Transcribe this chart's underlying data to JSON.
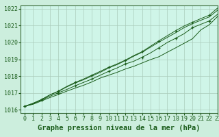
{
  "title": "Graphe pression niveau de la mer (hPa)",
  "bg_color": "#cceedd",
  "plot_bg_color": "#cff5e8",
  "grid_color": "#aaccbb",
  "line_color": "#1a5c1a",
  "border_color": "#336633",
  "xlim": [
    -0.5,
    23
  ],
  "ylim": [
    1015.8,
    1022.2
  ],
  "xtick_labels": [
    "0",
    "1",
    "2",
    "3",
    "4",
    "5",
    "6",
    "7",
    "8",
    "9",
    "10",
    "11",
    "12",
    "13",
    "14",
    "15",
    "16",
    "17",
    "18",
    "19",
    "20",
    "21",
    "22",
    "23"
  ],
  "yticks": [
    1016,
    1017,
    1018,
    1019,
    1020,
    1021,
    1022
  ],
  "series_plain": [
    [
      1016.2,
      1016.32,
      1016.52,
      1016.72,
      1016.9,
      1017.1,
      1017.28,
      1017.45,
      1017.65,
      1017.88,
      1018.05,
      1018.22,
      1018.42,
      1018.58,
      1018.78,
      1018.98,
      1019.15,
      1019.42,
      1019.68,
      1019.95,
      1020.22,
      1020.75,
      1021.05,
      1021.55
    ],
    [
      1016.2,
      1016.38,
      1016.6,
      1016.88,
      1017.08,
      1017.35,
      1017.58,
      1017.78,
      1018.0,
      1018.22,
      1018.48,
      1018.68,
      1018.92,
      1019.18,
      1019.42,
      1019.72,
      1020.02,
      1020.3,
      1020.58,
      1020.88,
      1021.12,
      1021.32,
      1021.52,
      1021.92
    ]
  ],
  "series_marker": [
    [
      1016.2,
      1016.35,
      1016.57,
      1016.8,
      1017.0,
      1017.2,
      1017.42,
      1017.62,
      1017.82,
      1018.05,
      1018.28,
      1018.48,
      1018.72,
      1018.88,
      1019.12,
      1019.38,
      1019.68,
      1020.0,
      1020.25,
      1020.52,
      1020.88,
      1021.08,
      1021.28,
      1021.68
    ],
    [
      1016.2,
      1016.38,
      1016.6,
      1016.88,
      1017.1,
      1017.38,
      1017.62,
      1017.82,
      1018.05,
      1018.28,
      1018.52,
      1018.72,
      1018.95,
      1019.22,
      1019.45,
      1019.78,
      1020.1,
      1020.4,
      1020.7,
      1020.98,
      1021.2,
      1021.42,
      1021.62,
      1022.05
    ]
  ],
  "xlabel_fontsize": 7.5,
  "tick_fontsize": 6.0
}
